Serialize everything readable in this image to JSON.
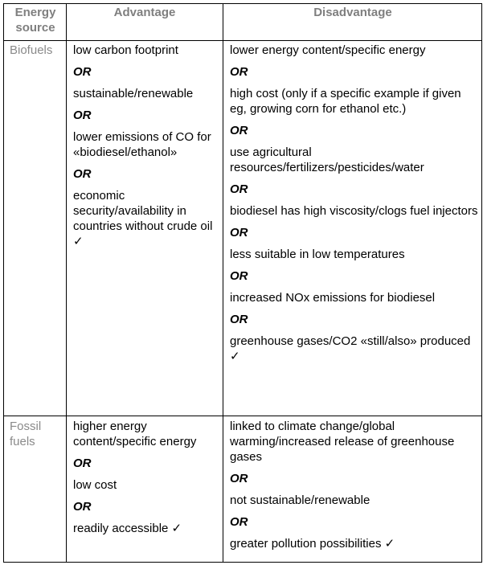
{
  "headers": {
    "source": "Energy source",
    "advantage": "Advantage",
    "disadvantage": "Disadvantage"
  },
  "or_label": "OR",
  "rows": [
    {
      "source": "Biofuels",
      "advantages": [
        "low carbon footprint",
        "sustainable/renewable",
        "lower emissions of CO for «biodiesel/ethanol»",
        "economic security/availability in countries without crude oil ✓"
      ],
      "disadvantages": [
        "lower energy content/specific energy",
        "high cost (only if a specific example if given eg, growing corn for ethanol etc.)",
        "use agricultural resources/fertilizers/pesticides/water",
        "biodiesel has high viscosity/clogs fuel injectors",
        "less suitable in low temperatures",
        "increased NOx emissions for biodiesel",
        "greenhouse gases/CO2 «still/also» produced ✓"
      ]
    },
    {
      "source": "Fossil fuels",
      "advantages": [
        "higher energy content/specific energy",
        "low cost",
        "readily accessible ✓"
      ],
      "disadvantages": [
        "linked to climate change/global warming/increased release of greenhouse gases",
        "not sustainable/renewable",
        "greater pollution possibilities ✓"
      ]
    }
  ]
}
